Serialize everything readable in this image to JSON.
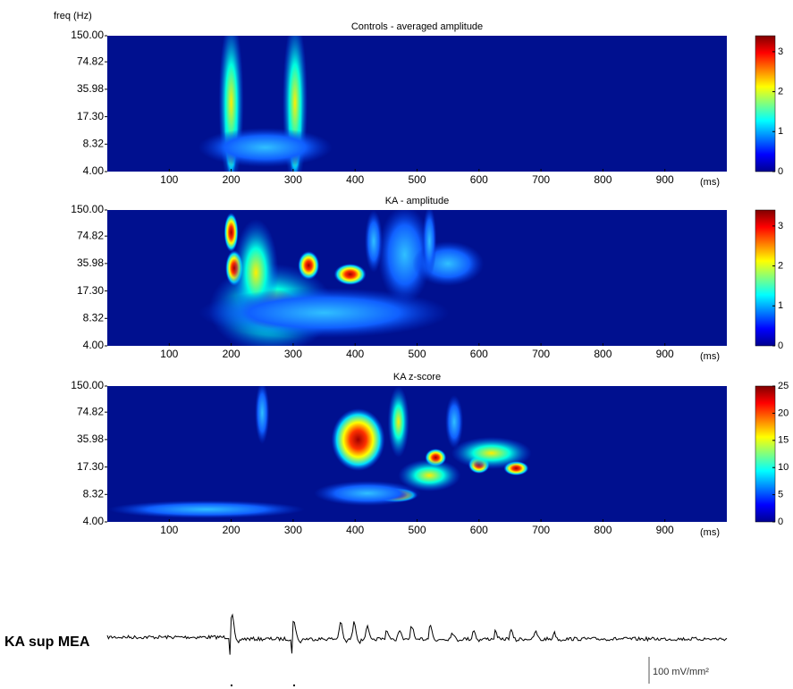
{
  "chart_data": [
    {
      "type": "heatmap",
      "title": "Controls  - averaged amplitude",
      "y_label": "freq (Hz)",
      "x_unit": "(ms)",
      "xlim": [
        0,
        1000
      ],
      "xticks": [
        100,
        200,
        300,
        400,
        500,
        600,
        700,
        800,
        900
      ],
      "ylim": [
        4,
        150
      ],
      "log_y": true,
      "yticks": [
        {
          "value": 4,
          "label": "4.00"
        },
        {
          "value": 8.32,
          "label": "8.32"
        },
        {
          "value": 17.3,
          "label": "17.30"
        },
        {
          "value": 35.98,
          "label": "35.98"
        },
        {
          "value": 74.82,
          "label": "74.82"
        },
        {
          "value": 150,
          "label": "150.00"
        }
      ],
      "clim": [
        0,
        3.4
      ],
      "cticks": [
        0,
        1,
        2,
        3
      ]
    },
    {
      "type": "heatmap",
      "title": "KA - amplitude",
      "x_unit": "(ms)",
      "xlim": [
        0,
        1000
      ],
      "xticks": [
        100,
        200,
        300,
        400,
        500,
        600,
        700,
        800,
        900
      ],
      "ylim": [
        4,
        150
      ],
      "log_y": true,
      "yticks": [
        {
          "value": 4,
          "label": "4.00"
        },
        {
          "value": 8.32,
          "label": "8.32"
        },
        {
          "value": 17.3,
          "label": "17.30"
        },
        {
          "value": 35.98,
          "label": "35.98"
        },
        {
          "value": 74.82,
          "label": "74.82"
        },
        {
          "value": 150,
          "label": "150.00"
        }
      ],
      "clim": [
        0,
        3.4
      ],
      "cticks": [
        0,
        1,
        2,
        3
      ]
    },
    {
      "type": "heatmap",
      "title": "KA  z-score",
      "x_unit": "(ms)",
      "xlim": [
        0,
        1000
      ],
      "xticks": [
        100,
        200,
        300,
        400,
        500,
        600,
        700,
        800,
        900
      ],
      "ylim": [
        4,
        150
      ],
      "log_y": true,
      "yticks": [
        {
          "value": 4,
          "label": "4.00"
        },
        {
          "value": 8.32,
          "label": "8.32"
        },
        {
          "value": 17.3,
          "label": "17.30"
        },
        {
          "value": 35.98,
          "label": "35.98"
        },
        {
          "value": 74.82,
          "label": "74.82"
        },
        {
          "value": 150,
          "label": "150.00"
        }
      ],
      "clim": [
        0,
        25
      ],
      "cticks": [
        0,
        5,
        10,
        15,
        20,
        25
      ]
    }
  ],
  "trace": {
    "label": "KA sup MEA",
    "scale_label": "100 mV/mm²"
  }
}
